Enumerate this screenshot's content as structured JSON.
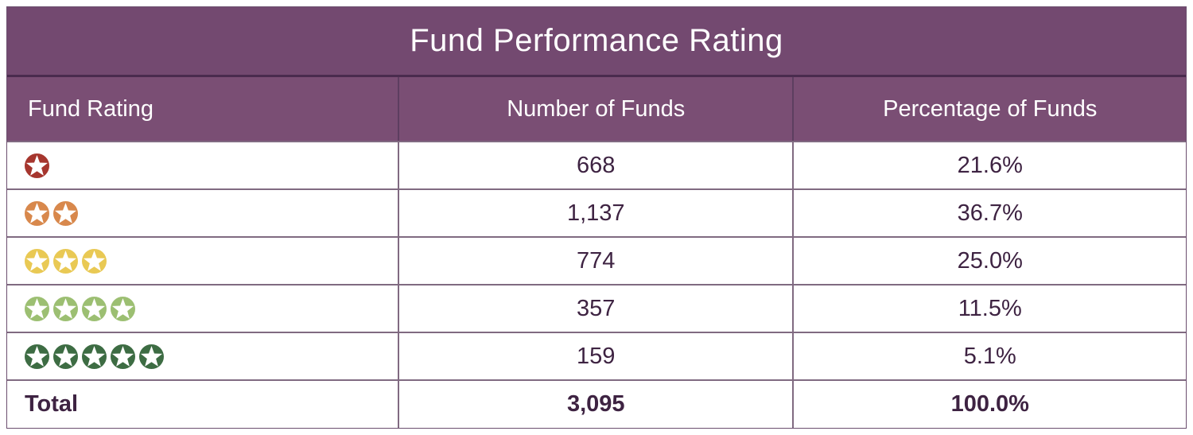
{
  "title": "Fund Performance Rating",
  "columns": {
    "rating": "Fund Rating",
    "count": "Number of Funds",
    "pct": "Percentage of Funds"
  },
  "chart_data": {
    "type": "table",
    "title": "Fund Performance Rating",
    "categories": [
      "1 star",
      "2 stars",
      "3 stars",
      "4 stars",
      "5 stars"
    ],
    "series": [
      {
        "name": "Number of Funds",
        "values": [
          668,
          1137,
          774,
          357,
          159
        ]
      },
      {
        "name": "Percentage of Funds",
        "values": [
          21.6,
          36.7,
          25.0,
          11.5,
          5.1
        ]
      }
    ],
    "total": {
      "number_of_funds": 3095,
      "percentage_of_funds": 100.0
    }
  },
  "rows": [
    {
      "stars": 1,
      "star_color": "#a6362e",
      "count": "668",
      "pct": "21.6%"
    },
    {
      "stars": 2,
      "star_color": "#d8884c",
      "count": "1,137",
      "pct": "36.7%"
    },
    {
      "stars": 3,
      "star_color": "#e9c954",
      "count": "774",
      "pct": "25.0%"
    },
    {
      "stars": 4,
      "star_color": "#9cbf72",
      "count": "357",
      "pct": "11.5%"
    },
    {
      "stars": 5,
      "star_color": "#3d6c43",
      "count": "159",
      "pct": "5.1%"
    }
  ],
  "total": {
    "label": "Total",
    "count": "3,095",
    "pct": "100.0%"
  },
  "colors": {
    "title_bg": "#734970",
    "header_bg": "#7a4e74",
    "grid_line": "#806a81",
    "title_divider": "#4a2b4e",
    "cell_text": "#3e2342",
    "star_fill": "#ffffff"
  }
}
